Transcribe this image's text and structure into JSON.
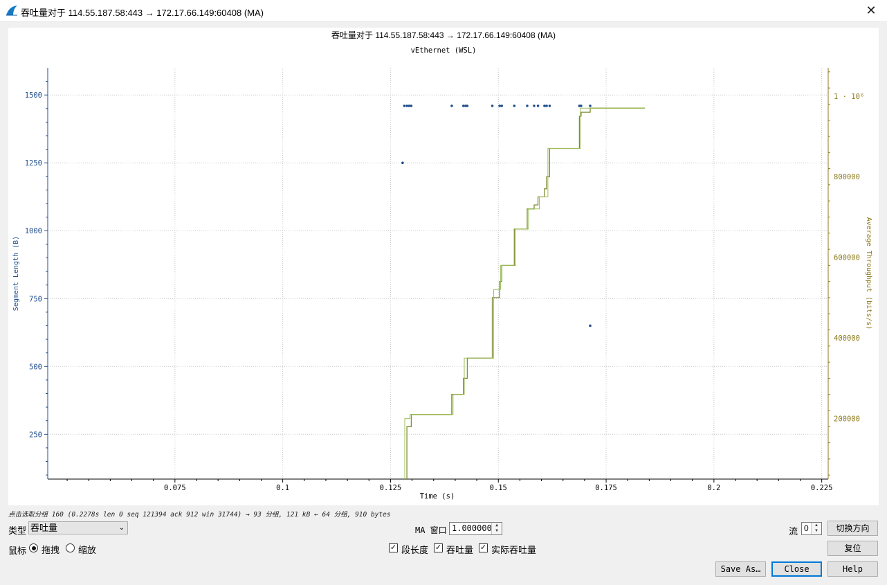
{
  "window": {
    "title": "吞吐量对于 114.55.187.58:443 → 172.17.66.149:60408 (MA)",
    "close_glyph": "✕"
  },
  "graph": {
    "title": "吞吐量对于 114.55.187.58:443 → 172.17.66.149:60408 (MA)",
    "subtitle": "vEthernet (WSL)"
  },
  "chart_data": {
    "type": "scatter",
    "title": "吞吐量对于 114.55.187.58:443 → 172.17.66.149:60408 (MA)",
    "subtitle": "vEthernet (WSL)",
    "xlabel": "Time (s)",
    "ylabel_left": "Segment Length (B)",
    "ylabel_right": "Average Throughput (bits/s)",
    "xlim": [
      0.0455,
      0.2265
    ],
    "ylim_left": [
      85,
      1600
    ],
    "ylim_right": [
      50000,
      1070000
    ],
    "x_ticks": [
      0.075,
      0.1,
      0.125,
      0.15,
      0.175,
      0.2,
      0.225
    ],
    "x_tick_labels": [
      "0.075",
      "0.1",
      "0.125",
      "0.15",
      "0.175",
      "0.2",
      "0.225"
    ],
    "y_left_ticks": [
      250,
      500,
      750,
      1000,
      1250,
      1500
    ],
    "y_left_tick_labels": [
      "250",
      "500",
      "750",
      "1000",
      "1250",
      "1500"
    ],
    "y_right_ticks": [
      200000,
      400000,
      600000,
      800000,
      1000000
    ],
    "y_right_tick_labels": [
      "200000",
      "400000",
      "600000",
      "800000",
      "1 · 10⁶"
    ],
    "grid": true,
    "colors": {
      "segments": "#1f4e8c",
      "throughput": "#808c30",
      "throughput_actual": "#9cbf5a",
      "axis_left": "#1f4e8c",
      "axis_right": "#8c7a1a"
    },
    "series": [
      {
        "axis": "left",
        "style": "points",
        "points": [
          [
            0.1282,
            1460
          ],
          [
            0.1288,
            1460
          ],
          [
            0.1293,
            1460
          ],
          [
            0.1298,
            1460
          ],
          [
            0.1392,
            1460
          ],
          [
            0.1419,
            1460
          ],
          [
            0.1424,
            1460
          ],
          [
            0.1428,
            1460
          ],
          [
            0.1486,
            1460
          ],
          [
            0.1503,
            1460
          ],
          [
            0.1508,
            1460
          ],
          [
            0.1537,
            1460
          ],
          [
            0.1567,
            1460
          ],
          [
            0.1583,
            1460
          ],
          [
            0.1592,
            1460
          ],
          [
            0.1607,
            1460
          ],
          [
            0.1612,
            1460
          ],
          [
            0.1619,
            1460
          ],
          [
            0.1688,
            1460
          ],
          [
            0.1692,
            1460
          ],
          [
            0.1278,
            1250
          ],
          [
            0.1713,
            1460
          ],
          [
            0.1713,
            650
          ]
        ]
      },
      {
        "axis": "right",
        "style": "step",
        "points": [
          [
            0.1288,
            50000
          ],
          [
            0.1288,
            180000
          ],
          [
            0.1298,
            180000
          ],
          [
            0.1298,
            210000
          ],
          [
            0.1392,
            210000
          ],
          [
            0.1392,
            260000
          ],
          [
            0.1419,
            260000
          ],
          [
            0.1419,
            300000
          ],
          [
            0.1428,
            300000
          ],
          [
            0.1428,
            350000
          ],
          [
            0.1486,
            350000
          ],
          [
            0.1486,
            500000
          ],
          [
            0.1503,
            500000
          ],
          [
            0.1503,
            540000
          ],
          [
            0.1508,
            540000
          ],
          [
            0.1508,
            580000
          ],
          [
            0.1537,
            580000
          ],
          [
            0.1537,
            670000
          ],
          [
            0.1567,
            670000
          ],
          [
            0.1567,
            720000
          ],
          [
            0.1583,
            720000
          ],
          [
            0.1583,
            730000
          ],
          [
            0.1592,
            730000
          ],
          [
            0.1592,
            750000
          ],
          [
            0.1607,
            750000
          ],
          [
            0.1607,
            770000
          ],
          [
            0.1612,
            770000
          ],
          [
            0.1612,
            800000
          ],
          [
            0.1619,
            800000
          ],
          [
            0.1619,
            870000
          ],
          [
            0.1688,
            870000
          ],
          [
            0.1688,
            950000
          ],
          [
            0.1692,
            950000
          ],
          [
            0.1692,
            960000
          ],
          [
            0.1713,
            960000
          ],
          [
            0.1713,
            970000
          ],
          [
            0.184,
            970000
          ]
        ]
      },
      {
        "axis": "right",
        "style": "step",
        "points": [
          [
            0.1283,
            50000
          ],
          [
            0.1283,
            200000
          ],
          [
            0.1295,
            200000
          ],
          [
            0.1295,
            210000
          ],
          [
            0.1395,
            210000
          ],
          [
            0.1395,
            260000
          ],
          [
            0.1421,
            260000
          ],
          [
            0.1421,
            350000
          ],
          [
            0.1489,
            350000
          ],
          [
            0.1489,
            520000
          ],
          [
            0.1505,
            520000
          ],
          [
            0.1505,
            580000
          ],
          [
            0.154,
            580000
          ],
          [
            0.154,
            670000
          ],
          [
            0.157,
            670000
          ],
          [
            0.157,
            720000
          ],
          [
            0.1595,
            720000
          ],
          [
            0.1595,
            750000
          ],
          [
            0.1615,
            750000
          ],
          [
            0.1615,
            870000
          ],
          [
            0.169,
            870000
          ],
          [
            0.169,
            970000
          ],
          [
            0.184,
            970000
          ]
        ]
      }
    ]
  },
  "status": {
    "hint": "点击选取分组 160 (0.2278s len 0 seq 121394 ack 912 win 31744) → 93 分组, 121 kB ← 64 分组, 910 bytes"
  },
  "controls": {
    "type_label": "类型",
    "type_value": "吞吐量",
    "ma_label": "MA 窗口",
    "ma_value": "1.000000",
    "stream_label": "流",
    "stream_value": "0",
    "switch_direction": "切换方向",
    "mouse_label": "鼠标",
    "drag_label": "拖拽",
    "zoom_label": "缩放",
    "mouse_mode": "drag",
    "cb_segment_length": "段长度",
    "cb_throughput": "吞吐量",
    "cb_goodput": "实际吞吐量",
    "check_glyph": "✓",
    "spin_glyph_up": "▲",
    "spin_glyph_down": "▼",
    "combo_chevron": "⌄",
    "reset": "复位",
    "save_as": "Save As…",
    "close": "Close",
    "help": "Help"
  }
}
